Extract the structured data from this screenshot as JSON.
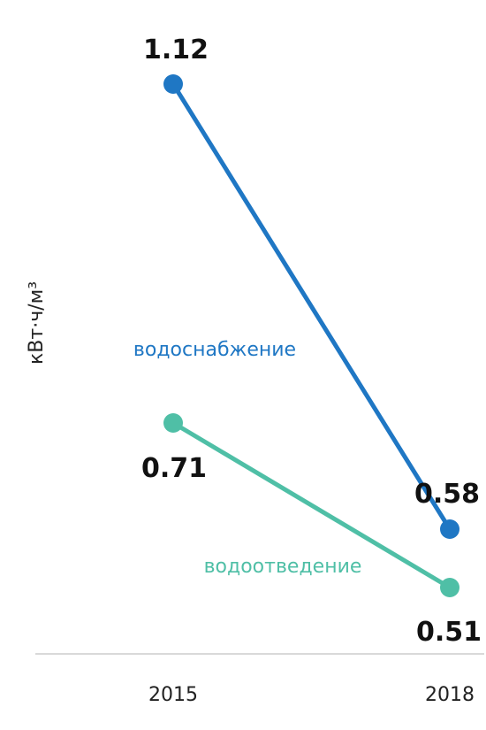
{
  "chart_data": {
    "type": "line",
    "title": "",
    "xlabel": "",
    "ylabel": "кВт·ч/м³",
    "x": [
      "2015",
      "2018"
    ],
    "ylim": [
      0.3,
      1.2
    ],
    "grid": false,
    "legend": "inline labels",
    "series": [
      {
        "name": "водоснабжение",
        "values": [
          1.12,
          0.58
        ],
        "color": "#1f77c4"
      },
      {
        "name": "водоотведение",
        "values": [
          0.71,
          0.51
        ],
        "color": "#4fbfa6"
      }
    ],
    "data_labels": [
      [
        "1.12",
        "0.58"
      ],
      [
        "0.71",
        "0.51"
      ]
    ]
  },
  "colors": {
    "axis": "#d9d9d9",
    "text": "#222222"
  }
}
